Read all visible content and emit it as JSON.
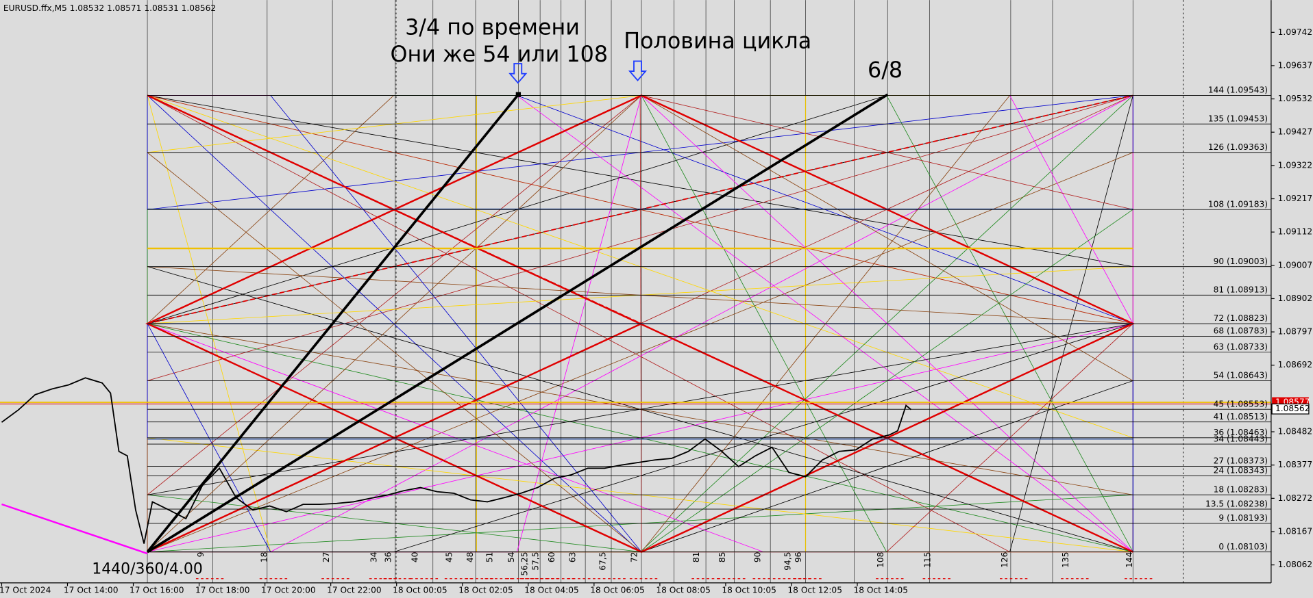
{
  "header": {
    "text": "EURUSD.ffx,M5  1.08532 1.08571 1.08531 1.08562"
  },
  "annotations": [
    "3/4 по времени",
    "Они же 54 или 108",
    "Половина цикла",
    "6/8",
    "1440/360/4.00"
  ],
  "price_axis": {
    "ticks": [
      1.09742,
      1.09637,
      1.09532,
      1.09427,
      1.09322,
      1.09217,
      1.09112,
      1.09007,
      1.08902,
      1.08797,
      1.08692,
      1.08482,
      1.08377,
      1.08272,
      1.08167,
      1.08062
    ],
    "current": [
      "1.08577",
      "1.08562"
    ]
  },
  "time_axis": {
    "labels": [
      "17 Oct 2024",
      "17 Oct 14:00",
      "17 Oct 16:00",
      "17 Oct 18:00",
      "17 Oct 20:00",
      "17 Oct 22:00",
      "18 Oct 00:05",
      "18 Oct 02:05",
      "18 Oct 04:05",
      "18 Oct 06:05",
      "18 Oct 08:05",
      "18 Oct 10:05",
      "18 Oct 12:05",
      "18 Oct 14:05"
    ]
  },
  "levels": [
    "144 (1.09543)",
    "135 (1.09453)",
    "126 (1.09363)",
    "108 (1.09183)",
    "90 (1.09003)",
    "81 (1.08913)",
    "72 (1.08823)",
    "68 (1.08783)",
    "63 (1.08733)",
    "54 (1.08643)",
    "45 (1.08553)",
    "41 (1.08513)",
    "36 (1.08463)",
    "34 (1.08443)",
    "27 (1.08373)",
    "24 (1.08343)",
    "18 (1.08283)",
    "13.5 (1.08238)",
    "9 (1.08193)",
    "0 (1.08103)"
  ],
  "gann_marks": [
    "9",
    "18",
    "27",
    "34",
    "36",
    "40",
    "45",
    "48",
    "51",
    "54",
    "56,25",
    "57,5",
    "60",
    "63",
    "67,5",
    "72",
    "81",
    "85",
    "90",
    "94,5",
    "96",
    "108",
    "115",
    "126",
    "135",
    "144"
  ],
  "price_series": {
    "values": [
      1.08512,
      1.08551,
      1.08599,
      1.08617,
      1.0863,
      1.08652,
      1.08636,
      1.08604,
      1.0842,
      1.08406,
      1.08235,
      1.08129,
      1.08261,
      1.08235,
      1.08208,
      1.08314,
      1.08367,
      1.08274,
      1.08235,
      1.08248,
      1.0823,
      1.08253,
      1.08253,
      1.08256,
      1.08261,
      1.08272,
      1.08282,
      1.08296,
      1.08306,
      1.08293,
      1.08288,
      1.08267,
      1.08261,
      1.08274,
      1.08288,
      1.08306,
      1.08335,
      1.08346,
      1.08367,
      1.08367,
      1.08377,
      1.08385,
      1.08393,
      1.08398,
      1.0842,
      1.08459,
      1.0842,
      1.08372,
      1.08406,
      1.08433,
      1.08354,
      1.0834,
      1.08393,
      1.0842,
      1.08425,
      1.08459,
      1.08472,
      1.08485,
      1.08565,
      1.08552
    ]
  }
}
